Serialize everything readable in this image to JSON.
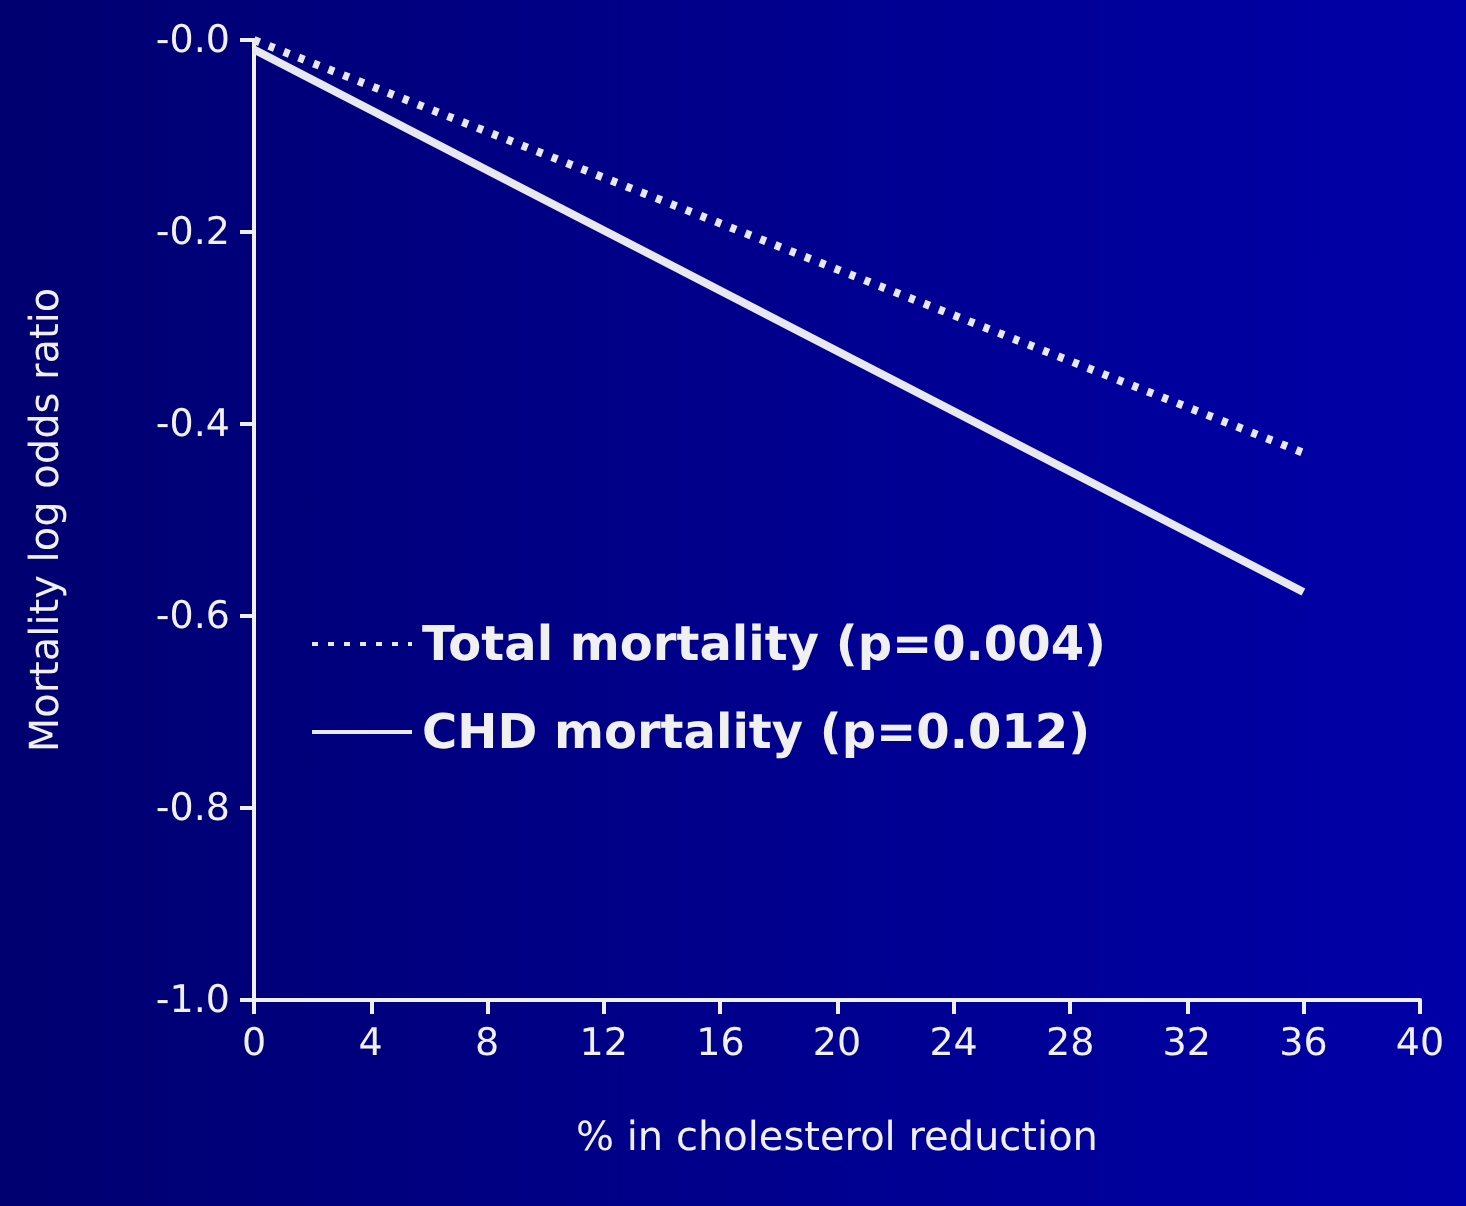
{
  "chart_data": {
    "type": "line",
    "xlabel": "% in cholesterol reduction",
    "ylabel": "Mortality log odds ratio",
    "x": [
      0,
      36
    ],
    "series": [
      {
        "name": "Total mortality (p=0.004)",
        "color": "#e8e8f0",
        "values": [
          0,
          -0.43
        ],
        "line_style": "dotted"
      },
      {
        "name": "CHD mortality (p=0.012)",
        "color": "#e8e8f0",
        "values": [
          -0.01,
          -0.575
        ],
        "line_style": "solid"
      }
    ],
    "xlim": [
      0,
      40
    ],
    "xticks": [
      0,
      4,
      8,
      12,
      16,
      20,
      24,
      28,
      32,
      36,
      40
    ],
    "ylim": [
      -1,
      0
    ],
    "yticks": [
      {
        "value": -1,
        "label": "-1.0"
      },
      -0.8,
      -0.6,
      -0.4,
      -0.2,
      {
        "value": 0,
        "label": "-0.0"
      }
    ],
    "grid": false,
    "legend": "left",
    "marker": "none"
  }
}
